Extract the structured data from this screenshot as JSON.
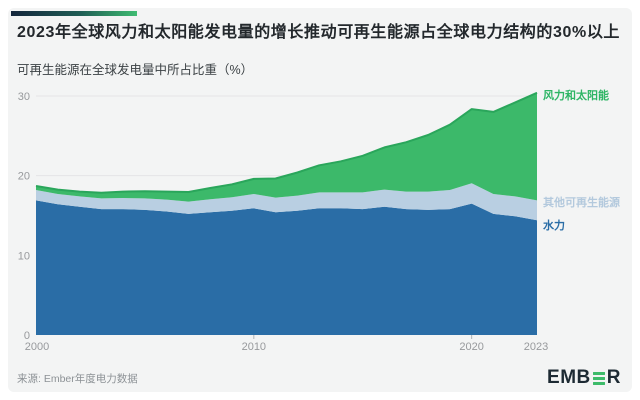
{
  "header": {
    "title": "2023年全球风力和太阳能发电量的增长推动可再生能源占全球电力结构的30%以上",
    "subtitle": "可再生能源在全球发电量中所占比重（%）"
  },
  "chart_data": {
    "type": "area",
    "stacked": true,
    "title": "可再生能源在全球发电量中所占比重（%）",
    "x": [
      2000,
      2001,
      2002,
      2003,
      2004,
      2005,
      2006,
      2007,
      2008,
      2009,
      2010,
      2011,
      2012,
      2013,
      2014,
      2015,
      2016,
      2017,
      2018,
      2019,
      2020,
      2021,
      2022,
      2023
    ],
    "series": [
      {
        "name": "水力",
        "color": "#2a6da6",
        "values": [
          16.9,
          16.4,
          16.1,
          15.8,
          15.8,
          15.7,
          15.5,
          15.2,
          15.4,
          15.6,
          15.9,
          15.4,
          15.6,
          15.9,
          15.9,
          15.8,
          16.1,
          15.8,
          15.7,
          15.8,
          16.5,
          15.2,
          14.9,
          14.4
        ]
      },
      {
        "name": "其他可再生能源",
        "color": "#b9cfe2",
        "values": [
          1.3,
          1.3,
          1.3,
          1.35,
          1.4,
          1.45,
          1.5,
          1.55,
          1.65,
          1.7,
          1.8,
          1.85,
          1.9,
          2.0,
          2.0,
          2.1,
          2.15,
          2.2,
          2.3,
          2.4,
          2.55,
          2.5,
          2.5,
          2.5
        ]
      },
      {
        "name": "风力和太阳能",
        "color": "#3cb96a",
        "line_color": "#2aa65b",
        "values": [
          0.5,
          0.55,
          0.6,
          0.7,
          0.8,
          0.9,
          1.0,
          1.2,
          1.4,
          1.6,
          1.9,
          2.4,
          2.9,
          3.4,
          3.9,
          4.6,
          5.3,
          6.2,
          7.1,
          8.2,
          9.3,
          10.3,
          11.8,
          13.5
        ]
      }
    ],
    "ylim": [
      0,
      30
    ],
    "yticks": [
      0,
      10,
      20,
      30
    ],
    "xticks": [
      2000,
      2010,
      2020,
      2023
    ],
    "grid": true,
    "legend_position": "right",
    "grid_color": "#e4e5e6",
    "axis_text_color": "#97999c"
  },
  "legend": {
    "wind_solar": "风力和太阳能",
    "other": "其他可再生能源",
    "hydro": "水力"
  },
  "footer": {
    "source": "来源: Ember年度电力数据"
  },
  "logo": {
    "prefix": "EMB",
    "suffix": "R"
  },
  "colors": {
    "card_background": "#f3f4f4",
    "accent_gradient_start": "#14263c",
    "accent_gradient_end": "#3fbc72",
    "wind_solar": "#3cb96a",
    "wind_solar_line": "#2aa65b",
    "other_renewables": "#b9cfe2",
    "hydro": "#2a6da6",
    "logo_green": "#3dbb6a"
  }
}
